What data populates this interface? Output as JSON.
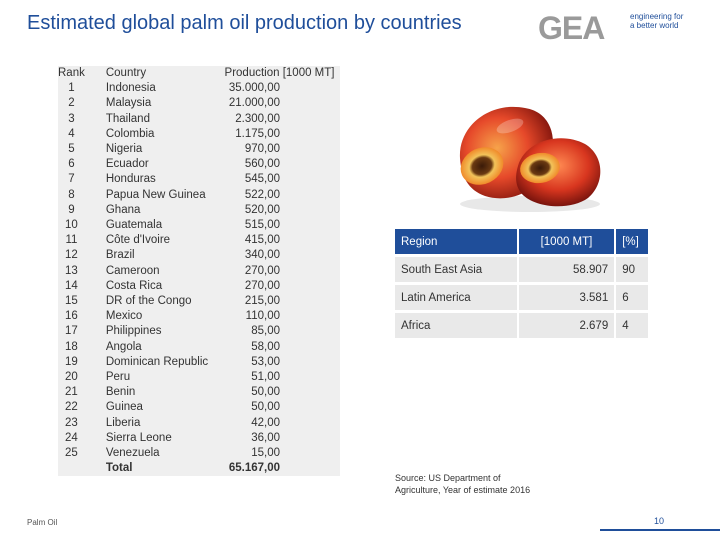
{
  "slide": {
    "title": "Estimated global palm oil production by countries",
    "footer_left": "Palm Oil",
    "page_number": "10"
  },
  "logo": {
    "text": "GEA",
    "tagline_1": "engineering for",
    "tagline_2": "a better world",
    "color": "#1f4e9a"
  },
  "production_table": {
    "headers": {
      "rank": "Rank",
      "country": "Country",
      "production": "Production [1000 MT]"
    },
    "rows": [
      {
        "rank": "1",
        "country": "Indonesia",
        "production": "35.000,00"
      },
      {
        "rank": "2",
        "country": "Malaysia",
        "production": "21.000,00"
      },
      {
        "rank": "3",
        "country": "Thailand",
        "production": "2.300,00"
      },
      {
        "rank": "4",
        "country": "Colombia",
        "production": "1.175,00"
      },
      {
        "rank": "5",
        "country": "Nigeria",
        "production": "970,00"
      },
      {
        "rank": "6",
        "country": "Ecuador",
        "production": "560,00"
      },
      {
        "rank": "7",
        "country": "Honduras",
        "production": "545,00"
      },
      {
        "rank": "8",
        "country": "Papua New Guinea",
        "production": "522,00"
      },
      {
        "rank": "9",
        "country": "Ghana",
        "production": "520,00"
      },
      {
        "rank": "10",
        "country": "Guatemala",
        "production": "515,00"
      },
      {
        "rank": "11",
        "country": "Côte d'Ivoire",
        "production": "415,00"
      },
      {
        "rank": "12",
        "country": "Brazil",
        "production": "340,00"
      },
      {
        "rank": "13",
        "country": "Cameroon",
        "production": "270,00"
      },
      {
        "rank": "14",
        "country": "Costa Rica",
        "production": "270,00"
      },
      {
        "rank": "15",
        "country": "DR of the Congo",
        "production": "215,00"
      },
      {
        "rank": "16",
        "country": "Mexico",
        "production": "110,00"
      },
      {
        "rank": "17",
        "country": "Philippines",
        "production": "85,00"
      },
      {
        "rank": "18",
        "country": "Angola",
        "production": "58,00"
      },
      {
        "rank": "19",
        "country": "Dominican Republic",
        "production": "53,00"
      },
      {
        "rank": "20",
        "country": "Peru",
        "production": "51,00"
      },
      {
        "rank": "21",
        "country": "Benin",
        "production": "50,00"
      },
      {
        "rank": "22",
        "country": "Guinea",
        "production": "50,00"
      },
      {
        "rank": "23",
        "country": "Liberia",
        "production": "42,00"
      },
      {
        "rank": "24",
        "country": "Sierra Leone",
        "production": "36,00"
      },
      {
        "rank": "25",
        "country": "Venezuela",
        "production": "15,00"
      }
    ],
    "total": {
      "label": "Total",
      "value": "65.167,00"
    }
  },
  "region_table": {
    "headers": {
      "region": "Region",
      "value": "[1000 MT]",
      "percent": "[%]"
    },
    "rows": [
      {
        "region": "South East Asia",
        "value": "58.907",
        "percent": "90"
      },
      {
        "region": "Latin America",
        "value": "3.581",
        "percent": "6"
      },
      {
        "region": "Africa",
        "value": "2.679",
        "percent": "4"
      }
    ]
  },
  "source": {
    "line1": "Source: US Department of",
    "line2": "Agriculture, Year of estimate 2016"
  },
  "image": {
    "subject": "palm-fruit"
  }
}
